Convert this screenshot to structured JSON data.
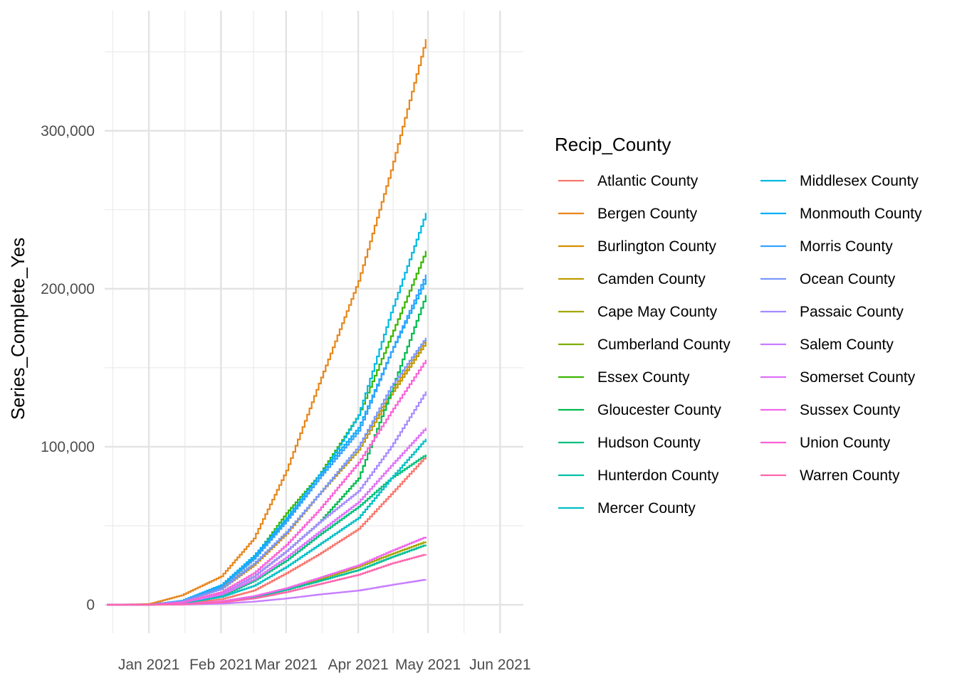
{
  "chart_data": {
    "type": "line",
    "line_style": "step",
    "title": "",
    "xlabel": "",
    "ylabel": "Series_Complete_Yes",
    "x_ticks": [
      "Jan 2021",
      "Feb 2021",
      "Mar 2021",
      "Apr 2021",
      "May 2021",
      "Jun 2021"
    ],
    "xlim": [
      "2020-12-13",
      "2021-06-11"
    ],
    "ylim": [
      -18000,
      376000
    ],
    "y_ticks": [
      0,
      100000,
      200000,
      300000
    ],
    "y_tick_labels": [
      "0",
      "100,000",
      "200,000",
      "300,000"
    ],
    "grid": true,
    "legend_title": "Recip_County",
    "legend_position": "right",
    "x": [
      "2020-12-14",
      "2021-01-01",
      "2021-01-15",
      "2021-02-01",
      "2021-02-15",
      "2021-03-01",
      "2021-03-15",
      "2021-04-01",
      "2021-04-15",
      "2021-04-30"
    ],
    "series": [
      {
        "name": "Atlantic County",
        "color": "#F8766D",
        "values": [
          0,
          0,
          800,
          3500,
          9000,
          20000,
          32000,
          48000,
          70000,
          94000
        ]
      },
      {
        "name": "Bergen County",
        "color": "#E7861B",
        "values": [
          0,
          500,
          6000,
          18000,
          42000,
          85000,
          140000,
          205000,
          275000,
          358000
        ]
      },
      {
        "name": "Burlington County",
        "color": "#D58F00",
        "values": [
          0,
          0,
          2000,
          10000,
          25000,
          45000,
          70000,
          100000,
          135000,
          168000
        ]
      },
      {
        "name": "Camden County",
        "color": "#C09B00",
        "values": [
          0,
          0,
          2500,
          11000,
          26000,
          46000,
          70000,
          98000,
          133000,
          166000
        ]
      },
      {
        "name": "Cape May County",
        "color": "#A3A500",
        "values": [
          0,
          0,
          300,
          2000,
          5000,
          10000,
          16000,
          24000,
          32000,
          40000
        ]
      },
      {
        "name": "Cumberland County",
        "color": "#7CAE00",
        "values": [
          0,
          0,
          250,
          1800,
          4500,
          9500,
          15000,
          22000,
          30000,
          38000
        ]
      },
      {
        "name": "Essex County",
        "color": "#39B600",
        "values": [
          0,
          0,
          2500,
          12000,
          30000,
          58000,
          82000,
          120000,
          170000,
          224000
        ]
      },
      {
        "name": "Gloucester County",
        "color": "#00BB4E",
        "values": [
          0,
          0,
          1500,
          7000,
          18000,
          34000,
          52000,
          80000,
          135000,
          196000
        ]
      },
      {
        "name": "Hudson County",
        "color": "#00BF7D",
        "values": [
          0,
          0,
          1200,
          5500,
          15000,
          28000,
          44000,
          62000,
          80000,
          95000
        ]
      },
      {
        "name": "Hunterdon County",
        "color": "#00C1A3",
        "values": [
          0,
          0,
          300,
          2000,
          5000,
          9500,
          15000,
          22000,
          30000,
          38000
        ]
      },
      {
        "name": "Mercer County",
        "color": "#00BFC4",
        "values": [
          0,
          0,
          1000,
          5000,
          12000,
          24000,
          38000,
          55000,
          80000,
          105000
        ]
      },
      {
        "name": "Middlesex County",
        "color": "#00BAE0",
        "values": [
          0,
          0,
          2500,
          12000,
          30000,
          54000,
          80000,
          120000,
          185000,
          248000
        ]
      },
      {
        "name": "Monmouth County",
        "color": "#00B0F6",
        "values": [
          0,
          0,
          2600,
          12500,
          31000,
          55000,
          82000,
          112000,
          160000,
          206000
        ]
      },
      {
        "name": "Morris County",
        "color": "#35A2FF",
        "values": [
          0,
          0,
          2400,
          11500,
          29000,
          53000,
          80000,
          110000,
          160000,
          209000
        ]
      },
      {
        "name": "Ocean County",
        "color": "#7997FF",
        "values": [
          0,
          0,
          2200,
          10000,
          26000,
          46000,
          70000,
          100000,
          138000,
          169000
        ]
      },
      {
        "name": "Passaic County",
        "color": "#A58AFF",
        "values": [
          0,
          0,
          1500,
          7000,
          18000,
          34000,
          52000,
          72000,
          100000,
          135000
        ]
      },
      {
        "name": "Salem County",
        "color": "#C77CFF",
        "values": [
          0,
          0,
          100,
          700,
          2000,
          4000,
          6500,
          9000,
          12500,
          16000
        ]
      },
      {
        "name": "Somerset County",
        "color": "#DF70F8",
        "values": [
          0,
          0,
          1500,
          6500,
          16000,
          30000,
          46000,
          65000,
          88000,
          112000
        ]
      },
      {
        "name": "Sussex County",
        "color": "#F066EA",
        "values": [
          0,
          0,
          400,
          2200,
          5500,
          10500,
          17000,
          25000,
          34000,
          43000
        ]
      },
      {
        "name": "Union County",
        "color": "#FB61D7",
        "values": [
          0,
          0,
          1500,
          8000,
          20000,
          38000,
          60000,
          90000,
          122000,
          155000
        ]
      },
      {
        "name": "Warren County",
        "color": "#FF65AC",
        "values": [
          0,
          0,
          200,
          1500,
          4000,
          8000,
          13000,
          19000,
          26000,
          32000
        ]
      }
    ]
  }
}
